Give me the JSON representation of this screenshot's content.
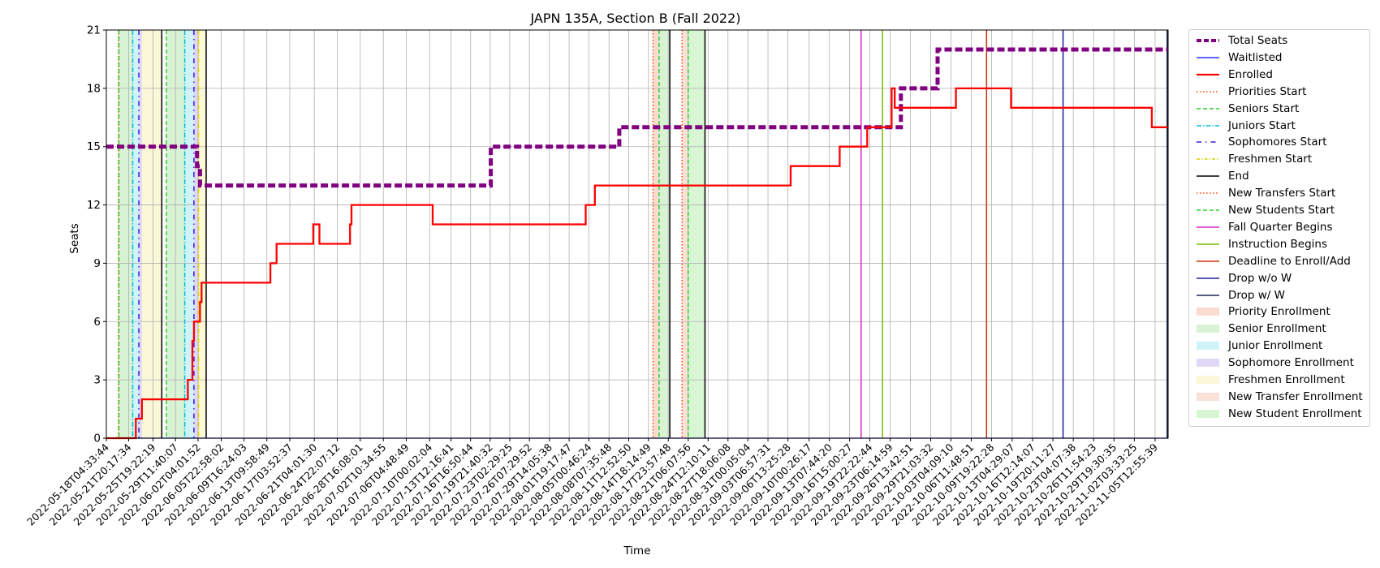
{
  "chart_data": {
    "type": "line",
    "title": "JAPN 135A, Section B (Fall 2022)",
    "xlabel": "Time",
    "ylabel": "Seats",
    "xlim": [
      "2022-05-18T04:33:44",
      "2022-11-07T16:00:00"
    ],
    "ylim": [
      0,
      21
    ],
    "yticks": [
      0,
      3,
      6,
      9,
      12,
      15,
      18,
      21
    ],
    "grid": true,
    "legend_position": "outside-right",
    "xtick_labels": [
      "2022-05-18T04:33:44",
      "2022-05-21T20:17:34",
      "2022-05-25T19:22:19",
      "2022-05-29T11:40:07",
      "2022-06-02T04:01:52",
      "2022-06-05T22:58:02",
      "2022-06-09T16:24:03",
      "2022-06-13T09:58:49",
      "2022-06-17T03:52:37",
      "2022-06-21T04:01:30",
      "2022-06-24T22:07:12",
      "2022-06-28T16:08:01",
      "2022-07-02T10:34:55",
      "2022-07-06T04:48:49",
      "2022-07-10T00:02:04",
      "2022-07-13T12:16:41",
      "2022-07-16T16:50:44",
      "2022-07-19T21:40:32",
      "2022-07-23T02:29:25",
      "2022-07-26T07:29:52",
      "2022-07-29T14:05:38",
      "2022-08-01T19:17:47",
      "2022-08-05T00:46:24",
      "2022-08-08T07:35:48",
      "2022-08-11T12:52:50",
      "2022-08-14T18:14:49",
      "2022-08-17T23:57:48",
      "2022-08-21T06:07:56",
      "2022-08-24T12:10:11",
      "2022-08-27T18:06:08",
      "2022-08-31T00:05:04",
      "2022-09-03T06:57:31",
      "2022-09-06T13:25:28",
      "2022-09-10T00:26:17",
      "2022-09-13T07:44:20",
      "2022-09-16T15:00:27",
      "2022-09-19T22:22:44",
      "2022-09-23T06:14:59",
      "2022-09-26T13:42:51",
      "2022-09-29T21:03:32",
      "2022-10-03T04:09:10",
      "2022-10-06T11:48:51",
      "2022-10-09T19:22:28",
      "2022-10-13T04:29:07",
      "2022-10-16T12:14:07",
      "2022-10-19T20:11:27",
      "2022-10-23T04:07:38",
      "2022-10-26T11:54:23",
      "2022-10-29T19:30:35",
      "2022-11-02T03:33:25",
      "2022-11-05T12:55:39"
    ],
    "series": [
      {
        "name": "Total Seats",
        "color": "#800080",
        "style": "dashed-thick",
        "points": [
          [
            "2022-05-18T04:33:44",
            15
          ],
          [
            "2022-06-02T00:00:00",
            15
          ],
          [
            "2022-06-02T00:00:00",
            14
          ],
          [
            "2022-06-02T12:00:00",
            14
          ],
          [
            "2022-06-02T12:00:00",
            13
          ],
          [
            "2022-07-20T00:00:00",
            13
          ],
          [
            "2022-07-20T00:00:00",
            15
          ],
          [
            "2022-08-10T00:00:00",
            15
          ],
          [
            "2022-08-10T00:00:00",
            16
          ],
          [
            "2022-09-25T00:00:00",
            16
          ],
          [
            "2022-09-25T00:00:00",
            18
          ],
          [
            "2022-10-01T00:00:00",
            18
          ],
          [
            "2022-10-01T00:00:00",
            20
          ],
          [
            "2022-11-07T16:00:00",
            20
          ]
        ]
      },
      {
        "name": "Waitlisted",
        "color": "#0000ff",
        "style": "solid",
        "points": [
          [
            "2022-05-18T04:33:44",
            0
          ],
          [
            "2022-11-07T16:00:00",
            0
          ]
        ]
      },
      {
        "name": "Enrolled",
        "color": "#ff0000",
        "style": "solid-thick",
        "points": [
          [
            "2022-05-18T04:33:44",
            0
          ],
          [
            "2022-05-23T00:00:00",
            0
          ],
          [
            "2022-05-23T00:00:00",
            1
          ],
          [
            "2022-05-24T00:00:00",
            1
          ],
          [
            "2022-05-24T00:00:00",
            2
          ],
          [
            "2022-05-27T12:00:00",
            2
          ],
          [
            "2022-05-27T12:00:00",
            2
          ],
          [
            "2022-05-28T00:00:00",
            2
          ],
          [
            "2022-05-28T00:00:00",
            2
          ],
          [
            "2022-05-31T12:00:00",
            2
          ],
          [
            "2022-05-31T12:00:00",
            3
          ],
          [
            "2022-06-01T06:00:00",
            3
          ],
          [
            "2022-06-01T06:00:00",
            5
          ],
          [
            "2022-06-01T12:00:00",
            5
          ],
          [
            "2022-06-01T12:00:00",
            6
          ],
          [
            "2022-06-02T12:00:00",
            6
          ],
          [
            "2022-06-02T12:00:00",
            7
          ],
          [
            "2022-06-02T18:00:00",
            7
          ],
          [
            "2022-06-02T18:00:00",
            8
          ],
          [
            "2022-06-14T00:00:00",
            8
          ],
          [
            "2022-06-14T00:00:00",
            9
          ],
          [
            "2022-06-15T00:00:00",
            9
          ],
          [
            "2022-06-15T00:00:00",
            10
          ],
          [
            "2022-06-21T00:00:00",
            10
          ],
          [
            "2022-06-21T00:00:00",
            11
          ],
          [
            "2022-06-22T00:00:00",
            11
          ],
          [
            "2022-06-22T00:00:00",
            10
          ],
          [
            "2022-06-27T00:00:00",
            10
          ],
          [
            "2022-06-27T00:00:00",
            11
          ],
          [
            "2022-06-27T06:00:00",
            11
          ],
          [
            "2022-06-27T06:00:00",
            12
          ],
          [
            "2022-07-10T12:00:00",
            12
          ],
          [
            "2022-07-10T12:00:00",
            11
          ],
          [
            "2022-08-04T12:00:00",
            11
          ],
          [
            "2022-08-04T12:00:00",
            12
          ],
          [
            "2022-08-06T00:00:00",
            12
          ],
          [
            "2022-08-06T00:00:00",
            13
          ],
          [
            "2022-09-07T00:00:00",
            13
          ],
          [
            "2022-09-07T00:00:00",
            14
          ],
          [
            "2022-09-15T00:00:00",
            14
          ],
          [
            "2022-09-15T00:00:00",
            15
          ],
          [
            "2022-09-19T12:00:00",
            15
          ],
          [
            "2022-09-19T12:00:00",
            16
          ],
          [
            "2022-09-23T12:00:00",
            16
          ],
          [
            "2022-09-23T12:00:00",
            18
          ],
          [
            "2022-09-24T00:00:00",
            18
          ],
          [
            "2022-09-24T00:00:00",
            17
          ],
          [
            "2022-10-04T00:00:00",
            17
          ],
          [
            "2022-10-04T00:00:00",
            18
          ],
          [
            "2022-10-13T00:00:00",
            18
          ],
          [
            "2022-10-13T00:00:00",
            17
          ],
          [
            "2022-11-05T00:00:00",
            17
          ],
          [
            "2022-11-05T00:00:00",
            16
          ],
          [
            "2022-11-07T16:00:00",
            16
          ]
        ]
      }
    ],
    "vertical_lines": [
      {
        "name": "Priorities Start",
        "color": "#ff4500",
        "style": "dotted",
        "x": [
          "2022-05-20T04:00:00",
          "2022-08-15T12:00:00"
        ]
      },
      {
        "name": "Seniors Start",
        "color": "#32cd32",
        "style": "dashed",
        "x": [
          "2022-05-20T06:00:00",
          "2022-05-28T00:00:00",
          "2022-08-16T12:00:00"
        ]
      },
      {
        "name": "Juniors Start",
        "color": "#00bfd8",
        "style": "dashdot",
        "x": [
          "2022-05-22T12:00:00",
          "2022-05-31T00:00:00"
        ]
      },
      {
        "name": "Sophomores Start",
        "color": "#3b16e0",
        "style": "dashdot-sparse",
        "x": [
          "2022-05-23T12:00:00",
          "2022-06-01T12:00:00"
        ]
      },
      {
        "name": "Freshmen Start",
        "color": "#d4d400",
        "style": "dashdot",
        "x": [
          "2022-06-02T06:00:00"
        ]
      },
      {
        "name": "End",
        "color": "#000000",
        "style": "solid",
        "x": [
          "2022-05-27T06:00:00",
          "2022-06-03T12:00:00",
          "2022-08-18T06:00:00",
          "2022-08-24T00:00:00"
        ]
      },
      {
        "name": "New Transfers Start",
        "color": "#ff4500",
        "style": "dotted",
        "x": [
          "2022-08-20T06:00:00"
        ]
      },
      {
        "name": "New Students Start",
        "color": "#32cd32",
        "style": "dashed",
        "x": [
          "2022-08-21T06:00:00"
        ]
      },
      {
        "name": "Fall Quarter Begins",
        "color": "#e020c0",
        "style": "solid",
        "x": [
          "2022-09-18T12:00:00"
        ]
      },
      {
        "name": "Instruction Begins",
        "color": "#7cb800",
        "style": "solid",
        "x": [
          "2022-09-22T00:00:00"
        ]
      },
      {
        "name": "Deadline to Enroll/Add",
        "color": "#d03010",
        "style": "solid",
        "x": [
          "2022-10-09T00:00:00"
        ]
      },
      {
        "name": "Drop w/o W",
        "color": "#1a1aa0",
        "style": "solid",
        "x": [
          "2022-10-21T12:00:00"
        ]
      },
      {
        "name": "Drop w/ W",
        "color": "#1c2c50",
        "style": "solid",
        "x": [
          "2022-11-07T12:00:00"
        ]
      }
    ],
    "shaded_regions": [
      {
        "name": "Priority Enrollment",
        "color": "#f4c0a8",
        "ranges": [
          [
            "2022-05-20T04:00:00",
            "2022-05-20T06:00:00"
          ],
          [
            "2022-08-15T12:00:00",
            "2022-08-16T12:00:00"
          ]
        ]
      },
      {
        "name": "Senior Enrollment",
        "color": "#b8e8b0",
        "ranges": [
          [
            "2022-05-20T06:00:00",
            "2022-05-22T12:00:00"
          ],
          [
            "2022-05-28T00:00:00",
            "2022-05-31T00:00:00"
          ],
          [
            "2022-08-16T12:00:00",
            "2022-08-18T06:00:00"
          ]
        ]
      },
      {
        "name": "Junior Enrollment",
        "color": "#a8eaf0",
        "ranges": [
          [
            "2022-05-22T12:00:00",
            "2022-05-23T12:00:00"
          ],
          [
            "2022-05-31T00:00:00",
            "2022-06-01T12:00:00"
          ]
        ]
      },
      {
        "name": "Sophomore Enrollment",
        "color": "#c8b8f0",
        "ranges": [
          [
            "2022-05-23T12:00:00",
            "2022-05-24T00:00:00"
          ],
          [
            "2022-06-01T12:00:00",
            "2022-06-02T06:00:00"
          ]
        ]
      },
      {
        "name": "Freshmen Enrollment",
        "color": "#f5f2b8",
        "ranges": [
          [
            "2022-05-24T00:00:00",
            "2022-05-27T06:00:00"
          ],
          [
            "2022-06-02T06:00:00",
            "2022-06-03T12:00:00"
          ]
        ]
      },
      {
        "name": "New Transfer Enrollment",
        "color": "#f4c8b8",
        "ranges": [
          [
            "2022-08-20T06:00:00",
            "2022-08-21T06:00:00"
          ]
        ]
      },
      {
        "name": "New Student Enrollment",
        "color": "#b8eeb0",
        "ranges": [
          [
            "2022-08-21T06:00:00",
            "2022-08-24T00:00:00"
          ]
        ]
      }
    ]
  },
  "legend": {
    "items": [
      {
        "label": "Total Seats",
        "kind": "line",
        "color": "#800080",
        "dash": "6,3",
        "width": 4
      },
      {
        "label": "Waitlisted",
        "kind": "line",
        "color": "#0000ff",
        "dash": "",
        "width": 1.2
      },
      {
        "label": "Enrolled",
        "kind": "line",
        "color": "#ff0000",
        "dash": "",
        "width": 2.2
      },
      {
        "label": "Priorities Start",
        "kind": "line",
        "color": "#ff4500",
        "dash": "1.5,2.5",
        "width": 1.5
      },
      {
        "label": "Seniors Start",
        "kind": "line",
        "color": "#32cd32",
        "dash": "5,3",
        "width": 1.5
      },
      {
        "label": "Juniors Start",
        "kind": "line",
        "color": "#00bfd8",
        "dash": "6,2,1.5,2",
        "width": 1.5
      },
      {
        "label": "Sophomores Start",
        "kind": "line",
        "color": "#3b16e0",
        "dash": "6,5,1.5,5",
        "width": 1.5
      },
      {
        "label": "Freshmen Start",
        "kind": "line",
        "color": "#d4d400",
        "dash": "4,2,1.5,2",
        "width": 1.5
      },
      {
        "label": "End",
        "kind": "line",
        "color": "#000000",
        "dash": "",
        "width": 1.5
      },
      {
        "label": "New Transfers Start",
        "kind": "line",
        "color": "#ff4500",
        "dash": "1.5,2.5",
        "width": 1.5
      },
      {
        "label": "New Students Start",
        "kind": "line",
        "color": "#32cd32",
        "dash": "5,3",
        "width": 1.5
      },
      {
        "label": "Fall Quarter Begins",
        "kind": "line",
        "color": "#e020c0",
        "dash": "",
        "width": 1.5
      },
      {
        "label": "Instruction Begins",
        "kind": "line",
        "color": "#7cb800",
        "dash": "",
        "width": 1.5
      },
      {
        "label": "Deadline to Enroll/Add",
        "kind": "line",
        "color": "#d03010",
        "dash": "",
        "width": 1.5
      },
      {
        "label": "Drop w/o W",
        "kind": "line",
        "color": "#1a1aa0",
        "dash": "",
        "width": 1.5
      },
      {
        "label": "Drop w/ W",
        "kind": "line",
        "color": "#1c2c50",
        "dash": "",
        "width": 1.5
      },
      {
        "label": "Priority Enrollment",
        "kind": "patch",
        "color": "#f4c0a8"
      },
      {
        "label": "Senior Enrollment",
        "kind": "patch",
        "color": "#b8e8b0"
      },
      {
        "label": "Junior Enrollment",
        "kind": "patch",
        "color": "#a8eaf0"
      },
      {
        "label": "Sophomore Enrollment",
        "kind": "patch",
        "color": "#c8b8f0"
      },
      {
        "label": "Freshmen Enrollment",
        "kind": "patch",
        "color": "#f5f2b8"
      },
      {
        "label": "New Transfer Enrollment",
        "kind": "patch",
        "color": "#f4c8b8"
      },
      {
        "label": "New Student Enrollment",
        "kind": "patch",
        "color": "#b8eeb0"
      }
    ]
  }
}
